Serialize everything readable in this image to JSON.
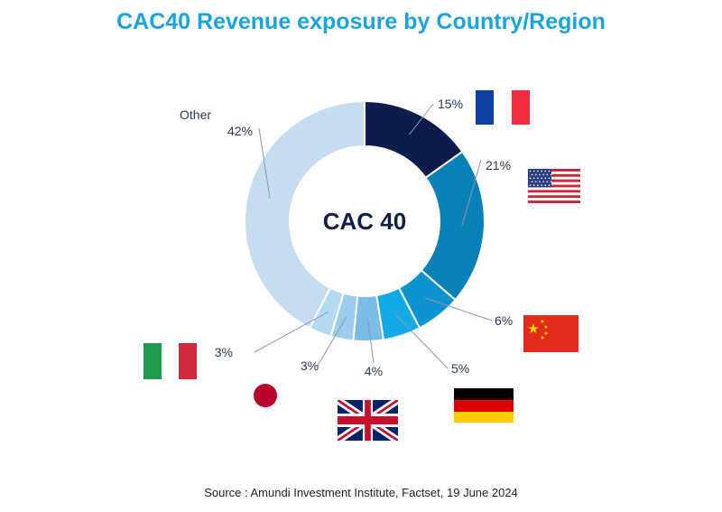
{
  "title": "CAC40 Revenue exposure by Country/Region",
  "center_label": "CAC 40",
  "source": "Source : Amundi Investment Institute,  Factset, 19 June 2024",
  "colors": {
    "title": "#1ba3dc",
    "france": "#0d1c4a",
    "usa": "#0a80b8",
    "china": "#0d93cf",
    "germany": "#12a9e6",
    "uk": "#79bde6",
    "japan": "#9dcdee",
    "italy": "#b6d9f2",
    "other": "#c6dcf1"
  },
  "chart_data": {
    "type": "pie",
    "donut": true,
    "title": "CAC40 Revenue exposure by Country/Region",
    "center_text": "CAC 40",
    "slices": [
      {
        "key": "france",
        "flag": "france-flag",
        "value": 15,
        "label": "15%"
      },
      {
        "key": "usa",
        "flag": "usa-flag",
        "value": 21,
        "label": "21%"
      },
      {
        "key": "china",
        "flag": "china-flag",
        "value": 6,
        "label": "6%"
      },
      {
        "key": "germany",
        "flag": "germany-flag",
        "value": 5,
        "label": "5%"
      },
      {
        "key": "uk",
        "flag": "uk-flag",
        "value": 4,
        "label": "4%"
      },
      {
        "key": "japan",
        "flag": "japan-flag",
        "value": 3,
        "label": "3%"
      },
      {
        "key": "italy",
        "flag": "italy-flag",
        "value": 3,
        "label": "3%"
      },
      {
        "key": "other",
        "flag": "",
        "value": 42,
        "label": "42%",
        "name": "Other"
      }
    ]
  }
}
